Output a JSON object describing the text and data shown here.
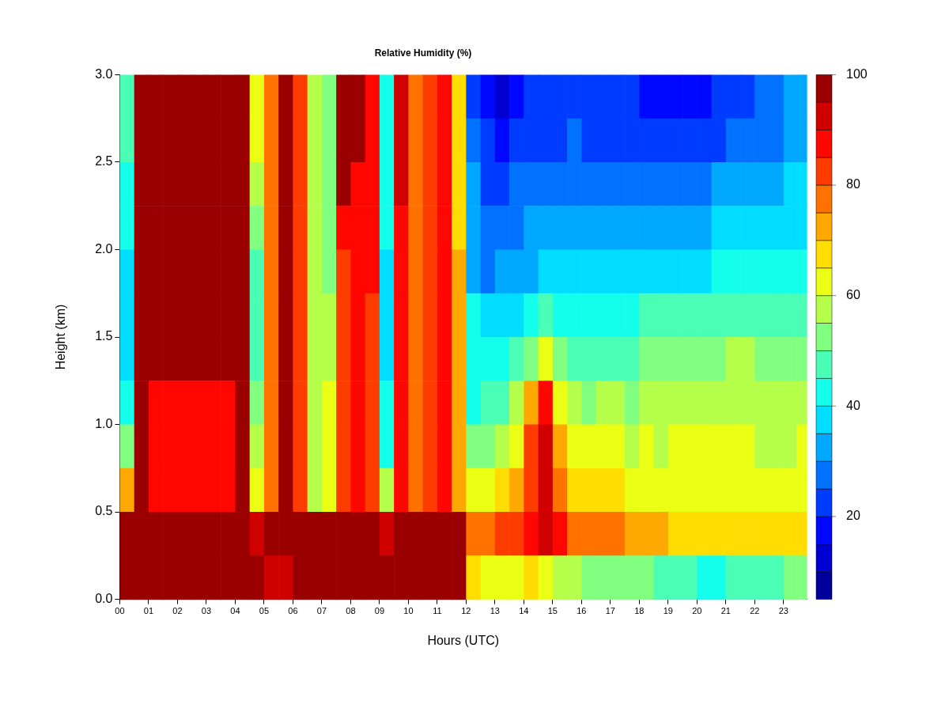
{
  "chart_data": {
    "type": "heatmap",
    "title": "Relative Humidity (%)",
    "xlabel": "Hours (UTC)",
    "ylabel": "Height (km)",
    "x": [
      0.25,
      0.75,
      1.25,
      1.75,
      2.25,
      2.75,
      3.25,
      3.75,
      4.25,
      4.75,
      5.25,
      5.75,
      6.25,
      6.75,
      7.25,
      7.75,
      8.25,
      8.75,
      9.25,
      9.75,
      10.25,
      10.75,
      11.25,
      11.75,
      12.25,
      12.75,
      13.25,
      13.75,
      14.25,
      14.75,
      15.25,
      15.75,
      16.25,
      16.75,
      17.25,
      17.75,
      18.25,
      18.75,
      19.25,
      19.75,
      20.25,
      20.75,
      21.25,
      21.75,
      22.25,
      22.75,
      23.25,
      23.65
    ],
    "xlim": [
      0,
      23.8
    ],
    "xticks": [
      {
        "value": 0,
        "label": "00"
      },
      {
        "value": 1,
        "label": "01"
      },
      {
        "value": 2,
        "label": "02"
      },
      {
        "value": 3,
        "label": "03"
      },
      {
        "value": 4,
        "label": "04"
      },
      {
        "value": 5,
        "label": "05"
      },
      {
        "value": 6,
        "label": "06"
      },
      {
        "value": 7,
        "label": "07"
      },
      {
        "value": 8,
        "label": "08"
      },
      {
        "value": 9,
        "label": "09"
      },
      {
        "value": 10,
        "label": "10"
      },
      {
        "value": 11,
        "label": "11"
      },
      {
        "value": 12,
        "label": "12"
      },
      {
        "value": 13,
        "label": "13"
      },
      {
        "value": 14,
        "label": "14"
      },
      {
        "value": 15,
        "label": "15"
      },
      {
        "value": 16,
        "label": "16"
      },
      {
        "value": 17,
        "label": "17"
      },
      {
        "value": 18,
        "label": "18"
      },
      {
        "value": 19,
        "label": "19"
      },
      {
        "value": 20,
        "label": "20"
      },
      {
        "value": 21,
        "label": "21"
      },
      {
        "value": 22,
        "label": "22"
      },
      {
        "value": 23,
        "label": "23"
      }
    ],
    "ylim": [
      0,
      3
    ],
    "yticks": [
      {
        "value": 0,
        "label": "0.0"
      },
      {
        "value": 0.5,
        "label": "0.5"
      },
      {
        "value": 1,
        "label": "1.0"
      },
      {
        "value": 1.5,
        "label": "1.5"
      },
      {
        "value": 2,
        "label": "2.0"
      },
      {
        "value": 2.5,
        "label": "2.5"
      },
      {
        "value": 3,
        "label": "3.0"
      }
    ],
    "cells": [
      [
        45,
        95,
        100,
        100,
        100,
        100,
        100,
        100,
        95,
        60,
        75,
        100,
        80,
        55,
        50,
        100,
        100,
        85,
        40,
        90,
        75,
        80,
        85,
        65,
        20,
        15,
        10,
        15,
        20,
        20,
        20,
        20,
        20,
        20,
        20,
        20,
        15,
        15,
        15,
        15,
        15,
        20,
        20,
        20,
        25,
        25,
        30,
        30
      ],
      [
        45,
        95,
        100,
        100,
        100,
        100,
        100,
        100,
        95,
        60,
        75,
        100,
        80,
        55,
        50,
        100,
        100,
        85,
        40,
        90,
        75,
        80,
        85,
        65,
        25,
        20,
        15,
        20,
        20,
        20,
        20,
        25,
        20,
        20,
        20,
        20,
        20,
        20,
        20,
        20,
        20,
        20,
        25,
        25,
        25,
        25,
        30,
        30
      ],
      [
        40,
        95,
        100,
        100,
        100,
        100,
        100,
        100,
        95,
        55,
        75,
        100,
        80,
        55,
        50,
        100,
        85,
        85,
        40,
        90,
        75,
        80,
        85,
        65,
        30,
        20,
        20,
        25,
        25,
        25,
        25,
        25,
        25,
        25,
        25,
        25,
        25,
        25,
        25,
        25,
        25,
        30,
        30,
        30,
        30,
        30,
        35,
        35
      ],
      [
        40,
        95,
        100,
        100,
        100,
        100,
        100,
        100,
        95,
        50,
        75,
        100,
        80,
        55,
        50,
        85,
        85,
        85,
        40,
        85,
        75,
        80,
        85,
        65,
        30,
        25,
        25,
        25,
        30,
        30,
        30,
        30,
        30,
        30,
        30,
        30,
        30,
        30,
        30,
        30,
        30,
        35,
        35,
        35,
        35,
        35,
        35,
        35
      ],
      [
        35,
        95,
        100,
        100,
        95,
        95,
        100,
        100,
        95,
        45,
        75,
        100,
        80,
        55,
        50,
        80,
        85,
        85,
        35,
        85,
        75,
        80,
        85,
        70,
        30,
        25,
        30,
        30,
        30,
        35,
        35,
        35,
        35,
        35,
        35,
        35,
        35,
        35,
        35,
        35,
        35,
        40,
        40,
        40,
        40,
        40,
        40,
        40
      ],
      [
        35,
        95,
        100,
        100,
        95,
        95,
        95,
        95,
        95,
        45,
        75,
        100,
        80,
        55,
        55,
        80,
        85,
        80,
        35,
        85,
        75,
        80,
        85,
        70,
        40,
        35,
        35,
        35,
        40,
        45,
        40,
        40,
        40,
        40,
        40,
        40,
        45,
        45,
        45,
        45,
        45,
        45,
        45,
        45,
        45,
        45,
        45,
        45
      ],
      [
        35,
        95,
        95,
        95,
        95,
        95,
        95,
        95,
        95,
        45,
        75,
        100,
        80,
        55,
        55,
        80,
        85,
        80,
        35,
        85,
        75,
        80,
        85,
        70,
        40,
        40,
        40,
        45,
        50,
        60,
        50,
        45,
        45,
        45,
        45,
        45,
        50,
        50,
        50,
        50,
        50,
        50,
        55,
        55,
        50,
        50,
        50,
        50
      ],
      [
        40,
        95,
        85,
        85,
        85,
        85,
        85,
        85,
        95,
        50,
        75,
        100,
        80,
        55,
        60,
        80,
        85,
        80,
        40,
        85,
        75,
        80,
        85,
        70,
        40,
        45,
        45,
        55,
        70,
        85,
        60,
        55,
        50,
        55,
        55,
        50,
        55,
        55,
        55,
        55,
        55,
        55,
        55,
        55,
        55,
        55,
        55,
        55
      ],
      [
        50,
        95,
        85,
        85,
        85,
        85,
        85,
        85,
        95,
        55,
        75,
        100,
        80,
        55,
        60,
        80,
        85,
        80,
        40,
        85,
        75,
        80,
        85,
        70,
        50,
        50,
        55,
        60,
        80,
        90,
        70,
        60,
        60,
        60,
        60,
        55,
        60,
        55,
        60,
        60,
        60,
        60,
        60,
        60,
        55,
        55,
        55,
        60
      ],
      [
        70,
        95,
        85,
        85,
        85,
        85,
        85,
        85,
        95,
        60,
        75,
        100,
        80,
        55,
        60,
        80,
        85,
        80,
        55,
        85,
        75,
        80,
        85,
        70,
        60,
        60,
        65,
        70,
        80,
        90,
        75,
        65,
        65,
        65,
        65,
        60,
        60,
        60,
        60,
        60,
        60,
        60,
        60,
        60,
        60,
        60,
        60,
        60
      ],
      [
        95,
        100,
        100,
        100,
        100,
        100,
        100,
        100,
        100,
        90,
        95,
        100,
        100,
        100,
        100,
        100,
        100,
        100,
        90,
        100,
        100,
        100,
        100,
        100,
        75,
        75,
        80,
        80,
        85,
        90,
        85,
        75,
        75,
        75,
        75,
        70,
        70,
        70,
        65,
        65,
        65,
        65,
        65,
        65,
        65,
        65,
        65,
        65
      ],
      [
        100,
        100,
        100,
        100,
        100,
        100,
        100,
        100,
        100,
        100,
        90,
        90,
        100,
        100,
        100,
        100,
        100,
        100,
        100,
        100,
        100,
        100,
        100,
        95,
        65,
        60,
        60,
        60,
        65,
        60,
        55,
        55,
        50,
        50,
        50,
        50,
        50,
        45,
        45,
        45,
        40,
        40,
        45,
        45,
        45,
        45,
        50,
        50
      ]
    ],
    "clim": [
      5,
      100
    ],
    "cticks": [
      20,
      40,
      60,
      80,
      100
    ]
  }
}
